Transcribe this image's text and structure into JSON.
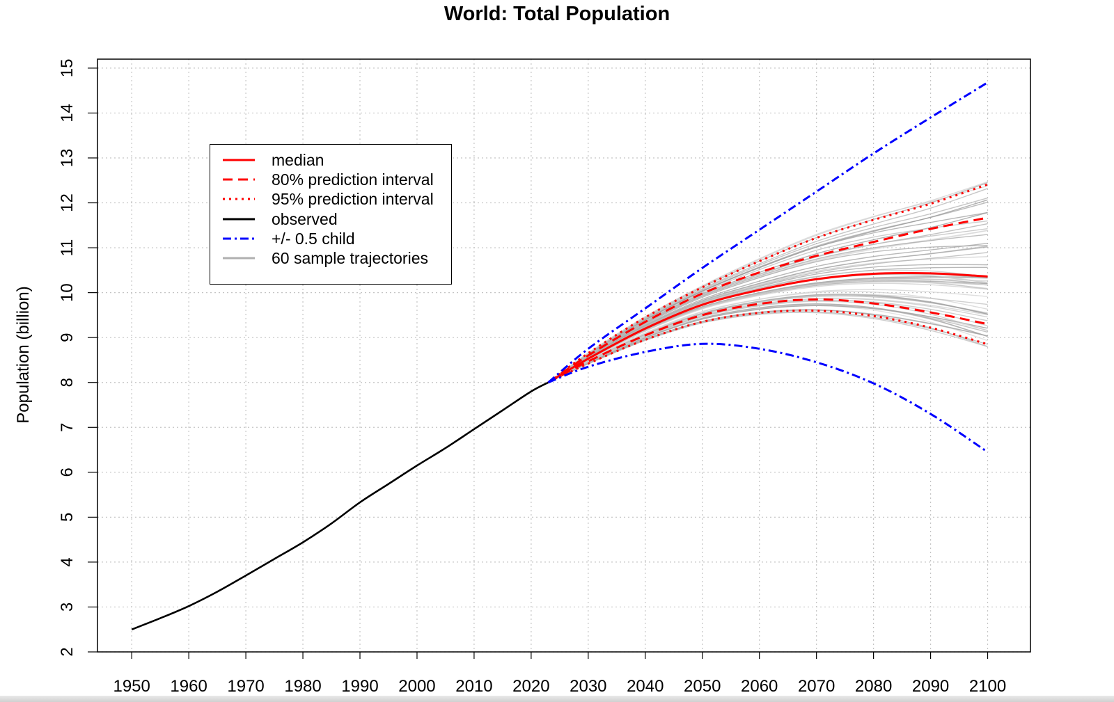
{
  "chart_data": {
    "type": "line",
    "title": "World: Total Population",
    "xlabel": "",
    "ylabel": "Population (billion)",
    "xlim": [
      1944,
      2107.5
    ],
    "ylim": [
      2,
      15.2
    ],
    "x_ticks": [
      1950,
      1960,
      1970,
      1980,
      1990,
      2000,
      2010,
      2020,
      2030,
      2040,
      2050,
      2060,
      2070,
      2080,
      2090,
      2100
    ],
    "y_ticks": [
      2,
      3,
      4,
      5,
      6,
      7,
      8,
      9,
      10,
      11,
      12,
      13,
      14,
      15
    ],
    "grid": true,
    "legend_position": "top-left",
    "colors": {
      "median": "#ff0000",
      "interval": "#ff0000",
      "observed": "#000000",
      "child": "#0000ff",
      "trajectory": "#b0b0b0"
    },
    "legend": [
      {
        "label": "median",
        "color": "#ff0000",
        "style": "solid"
      },
      {
        "label": "80% prediction interval",
        "color": "#ff0000",
        "style": "dashed"
      },
      {
        "label": "95% prediction interval",
        "color": "#ff0000",
        "style": "dotted"
      },
      {
        "label": "observed",
        "color": "#000000",
        "style": "solid"
      },
      {
        "label": "+/- 0.5 child",
        "color": "#0000ff",
        "style": "dashdot"
      },
      {
        "label": "60 sample trajectories",
        "color": "#b0b0b0",
        "style": "solid"
      }
    ],
    "series": [
      {
        "name": "observed",
        "style": "solid",
        "color": "#000000",
        "x": [
          1950,
          1955,
          1960,
          1965,
          1970,
          1975,
          1980,
          1985,
          1990,
          1995,
          2000,
          2005,
          2010,
          2015,
          2020,
          2023
        ],
        "y": [
          2.5,
          2.75,
          3.02,
          3.34,
          3.7,
          4.07,
          4.44,
          4.86,
          5.33,
          5.74,
          6.15,
          6.54,
          6.96,
          7.38,
          7.8,
          8.0
        ]
      },
      {
        "name": "median",
        "style": "solid",
        "color": "#ff0000",
        "x": [
          2023,
          2030,
          2040,
          2050,
          2060,
          2070,
          2080,
          2090,
          2100
        ],
        "y": [
          8.0,
          8.53,
          9.2,
          9.73,
          10.06,
          10.3,
          10.42,
          10.43,
          10.36
        ]
      },
      {
        "name": "80% prediction interval upper",
        "style": "dashed",
        "color": "#ff0000",
        "x": [
          2023,
          2030,
          2040,
          2050,
          2060,
          2070,
          2080,
          2090,
          2100
        ],
        "y": [
          8.0,
          8.6,
          9.35,
          9.98,
          10.45,
          10.82,
          11.13,
          11.42,
          11.67
        ]
      },
      {
        "name": "80% prediction interval lower",
        "style": "dashed",
        "color": "#ff0000",
        "x": [
          2023,
          2030,
          2040,
          2050,
          2060,
          2070,
          2080,
          2090,
          2100
        ],
        "y": [
          8.0,
          8.47,
          9.05,
          9.5,
          9.75,
          9.85,
          9.76,
          9.56,
          9.3
        ]
      },
      {
        "name": "95% prediction interval upper",
        "style": "dotted",
        "color": "#ff0000",
        "x": [
          2023,
          2030,
          2040,
          2050,
          2060,
          2070,
          2080,
          2090,
          2100
        ],
        "y": [
          8.0,
          8.65,
          9.45,
          10.12,
          10.7,
          11.22,
          11.62,
          11.98,
          12.41
        ]
      },
      {
        "name": "95% prediction interval lower",
        "style": "dotted",
        "color": "#ff0000",
        "x": [
          2023,
          2030,
          2040,
          2050,
          2060,
          2070,
          2080,
          2090,
          2100
        ],
        "y": [
          8.0,
          8.42,
          8.95,
          9.35,
          9.55,
          9.6,
          9.48,
          9.22,
          8.85
        ]
      },
      {
        "name": "+/- 0.5 child upper",
        "style": "dashdot",
        "color": "#0000ff",
        "x": [
          2023,
          2030,
          2040,
          2050,
          2060,
          2070,
          2080,
          2090,
          2100
        ],
        "y": [
          8.0,
          8.75,
          9.65,
          10.55,
          11.4,
          12.25,
          13.1,
          13.9,
          14.68
        ]
      },
      {
        "name": "+/- 0.5 child lower",
        "style": "dashdot",
        "color": "#0000ff",
        "x": [
          2023,
          2030,
          2040,
          2050,
          2060,
          2070,
          2080,
          2090,
          2100
        ],
        "y": [
          8.0,
          8.35,
          8.68,
          8.86,
          8.75,
          8.45,
          7.98,
          7.3,
          6.45
        ]
      }
    ],
    "trajectories": {
      "name": "60 sample trajectories",
      "count": 60,
      "x": [
        2023,
        2030,
        2040,
        2050,
        2060,
        2070,
        2080,
        2090,
        2100
      ],
      "y_ranges_2100": [
        8.8,
        12.4
      ]
    }
  }
}
